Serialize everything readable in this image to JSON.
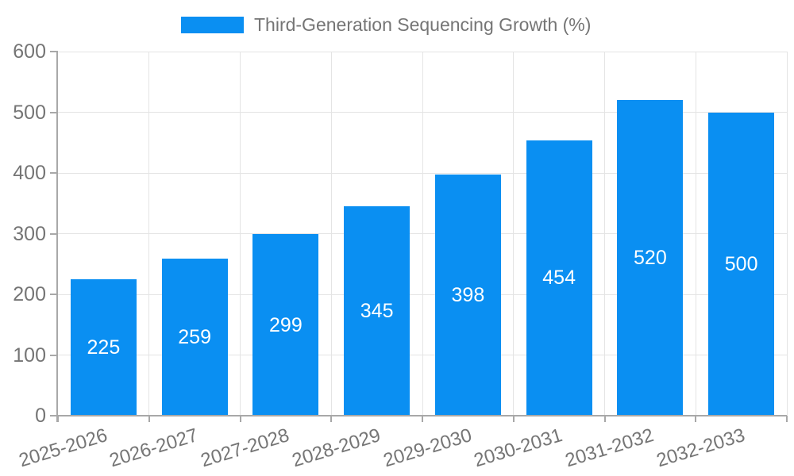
{
  "legend": {
    "label": "Third-Generation Sequencing Growth (%)"
  },
  "chart_data": {
    "type": "bar",
    "title": "Third-Generation Sequencing Growth (%)",
    "categories": [
      "2025-2026",
      "2026-2027",
      "2027-2028",
      "2028-2029",
      "2029-2030",
      "2030-2031",
      "2031-2032",
      "2032-2033"
    ],
    "values": [
      225,
      259,
      299,
      345,
      398,
      454,
      520,
      500
    ],
    "value_labels": [
      "225",
      "259",
      "299",
      "345",
      "398",
      "454",
      "520",
      "500"
    ],
    "xlabel": "",
    "ylabel": "",
    "ylim": [
      0,
      600
    ],
    "yticks": [
      0,
      100,
      200,
      300,
      400,
      500,
      600
    ],
    "ytick_labels": [
      "0",
      "100",
      "200",
      "300",
      "400",
      "500",
      "600"
    ],
    "grid": "on",
    "legend_position": "top",
    "colors": {
      "bar": "#0a8ff2",
      "value_label": "#ffffff",
      "axis_line": "#a8a8a8",
      "gridline": "#e4e4e4",
      "tick_label": "#757575",
      "legend_text": "#757575",
      "background": "#ffffff"
    }
  }
}
